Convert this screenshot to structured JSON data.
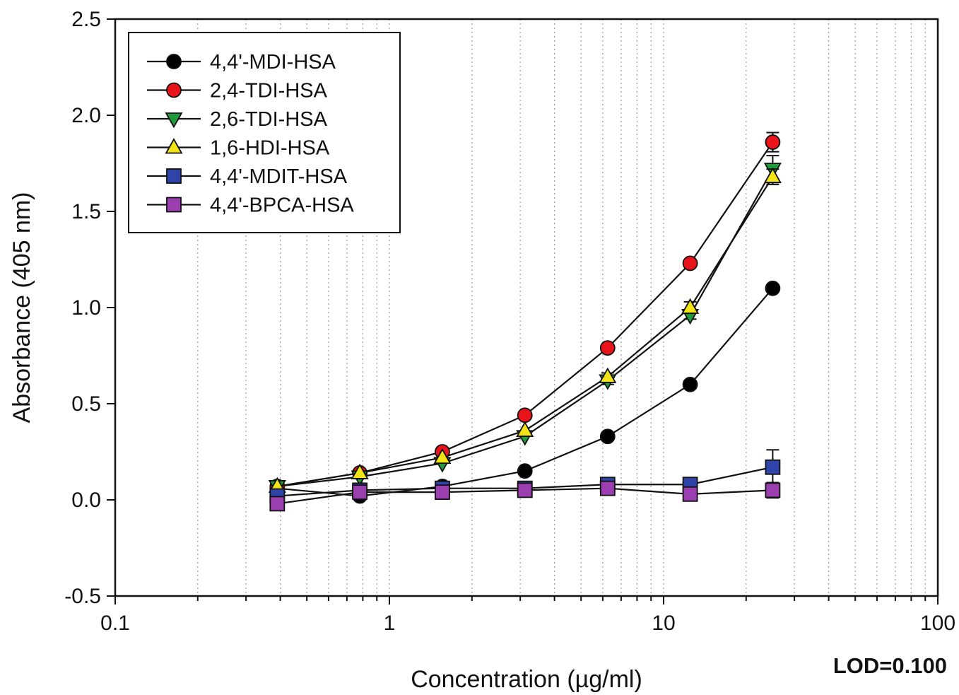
{
  "chart_data": {
    "type": "line",
    "xlabel": "Concentration (µg/ml)",
    "ylabel": "Absorbance (405 nm)",
    "xscale": "log",
    "xlim": [
      0.1,
      100
    ],
    "ylim": [
      -0.5,
      2.5
    ],
    "xticks": [
      {
        "value": 0.1,
        "label": "0.1"
      },
      {
        "value": 1,
        "label": "1"
      },
      {
        "value": 10,
        "label": "10"
      },
      {
        "value": 100,
        "label": "100"
      }
    ],
    "yticks": [
      {
        "value": 2.5,
        "label": "2.5"
      },
      {
        "value": 2.0,
        "label": "2.0"
      },
      {
        "value": 1.5,
        "label": "1.5"
      },
      {
        "value": 1.0,
        "label": "1.0"
      },
      {
        "value": 0.5,
        "label": "0.5"
      },
      {
        "value": 0.0,
        "label": "0.0"
      },
      {
        "value": -0.5,
        "label": "-0.5"
      }
    ],
    "grid": "vertical dotted (log)",
    "legend_position": "top-left",
    "annotation": "LOD=0.100",
    "x": [
      0.39,
      0.78,
      1.56,
      3.12,
      6.25,
      12.5,
      25
    ],
    "series": [
      {
        "name": "4,4'-MDI-HSA",
        "marker": "circle",
        "color": "#000000",
        "values": [
          0.06,
          0.02,
          0.07,
          0.15,
          0.33,
          0.6,
          1.1
        ],
        "errors": [
          0,
          0,
          0,
          0,
          0,
          0,
          0
        ]
      },
      {
        "name": "2,4-TDI-HSA",
        "marker": "circle",
        "color": "#e8141a",
        "values": [
          0.07,
          0.14,
          0.25,
          0.44,
          0.79,
          1.23,
          1.86
        ],
        "errors": [
          0,
          0,
          0,
          0,
          0.01,
          0.01,
          0.05
        ]
      },
      {
        "name": "2,6-TDI-HSA",
        "marker": "triangle-down",
        "color": "#1f9a3c",
        "values": [
          0.07,
          0.12,
          0.19,
          0.33,
          0.62,
          0.96,
          1.72
        ],
        "errors": [
          0,
          0,
          0,
          0,
          0.02,
          0.02,
          0.07
        ]
      },
      {
        "name": "1,6-HDI-HSA",
        "marker": "triangle-up",
        "color": "#f2e416",
        "values": [
          0.07,
          0.14,
          0.22,
          0.36,
          0.64,
          1.0,
          1.68
        ],
        "errors": [
          0,
          0,
          0,
          0,
          0.02,
          0.03,
          0.04
        ]
      },
      {
        "name": "4,4'-MDIT-HSA",
        "marker": "square",
        "color": "#2f44a8",
        "values": [
          0.02,
          0.05,
          0.06,
          0.06,
          0.08,
          0.08,
          0.17
        ],
        "errors": [
          0,
          0,
          0,
          0,
          0,
          0,
          0.09
        ]
      },
      {
        "name": "4,4'-BPCA-HSA",
        "marker": "square",
        "color": "#9b3fb0",
        "values": [
          -0.02,
          0.04,
          0.04,
          0.05,
          0.06,
          0.03,
          0.05
        ],
        "errors": [
          0,
          0,
          0,
          0,
          0,
          0,
          0.04
        ]
      }
    ]
  }
}
